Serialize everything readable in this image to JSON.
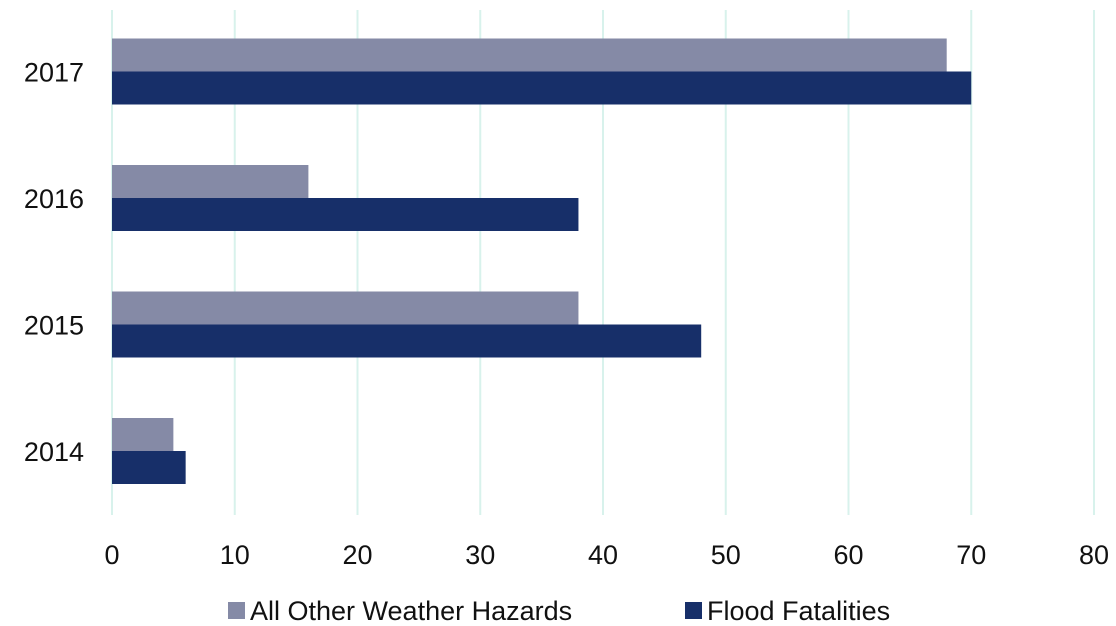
{
  "chart_data": {
    "type": "bar",
    "orientation": "horizontal",
    "categories": [
      "2017",
      "2016",
      "2015",
      "2014"
    ],
    "series": [
      {
        "name": "All Other Weather Hazards",
        "values": [
          68,
          16,
          38,
          5
        ],
        "color": "#858aa6"
      },
      {
        "name": "Flood Fatalities",
        "values": [
          70,
          38,
          48,
          6
        ],
        "color": "#172f69"
      }
    ],
    "title": "",
    "xlabel": "",
    "ylabel": "",
    "xlim": [
      0,
      80
    ],
    "xticks": [
      "0",
      "10",
      "20",
      "30",
      "40",
      "50",
      "60",
      "70",
      "80"
    ],
    "grid": "vertical",
    "grid_color": "#d8f2ec",
    "legend": "bottom"
  }
}
